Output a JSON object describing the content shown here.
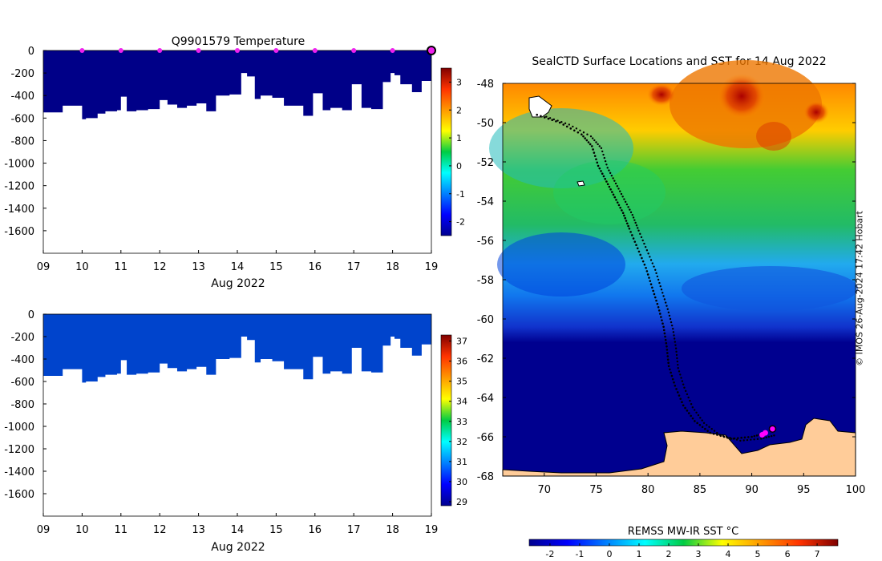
{
  "chart_data": [
    {
      "type": "area",
      "title": "Q9901579  Temperature",
      "xlabel": "Aug 2022",
      "ylabel": "",
      "xlim": [
        9,
        19
      ],
      "ylim": [
        -1800,
        0
      ],
      "x_ticks": [
        "09",
        "10",
        "11",
        "12",
        "13",
        "14",
        "15",
        "16",
        "17",
        "18",
        "19"
      ],
      "y_ticks": [
        "0",
        "-200",
        "-400",
        "-600",
        "-800",
        "-1000",
        "-1200",
        "-1400",
        "-1600"
      ],
      "profile_days": [
        9.0,
        9.5,
        9.75,
        10.0,
        10.1,
        10.4,
        10.6,
        10.9,
        11.0,
        11.15,
        11.4,
        11.7,
        12.0,
        12.2,
        12.45,
        12.7,
        12.95,
        13.2,
        13.45,
        13.8,
        14.1,
        14.25,
        14.45,
        14.6,
        14.9,
        15.2,
        15.45,
        15.7,
        15.95,
        16.2,
        16.4,
        16.7,
        16.95,
        17.2,
        17.45,
        17.75,
        17.95,
        18.05,
        18.2,
        18.5,
        18.75,
        19.0
      ],
      "profile_depths": [
        -550,
        -490,
        -490,
        -610,
        -600,
        -560,
        -540,
        -530,
        -410,
        -540,
        -530,
        -520,
        -440,
        -480,
        -510,
        -490,
        -470,
        -540,
        -400,
        -390,
        -200,
        -230,
        -430,
        -400,
        -420,
        -490,
        -490,
        -580,
        -380,
        -530,
        -510,
        -530,
        -300,
        -510,
        -520,
        -280,
        -200,
        -220,
        -300,
        -370,
        -270,
        -190
      ],
      "markers_days": [
        10,
        11,
        12,
        13,
        14,
        15,
        16,
        17,
        18
      ],
      "marker_color": "#ee22ee",
      "fill_color": "#000088",
      "colorbar": {
        "ticks": [
          "3",
          "2",
          "1",
          "0",
          "-1",
          "-2"
        ],
        "range": [
          -2.5,
          3.5
        ]
      }
    },
    {
      "type": "area",
      "title": "",
      "xlabel": "Aug 2022",
      "ylabel": "",
      "xlim": [
        9,
        19
      ],
      "ylim": [
        -1800,
        0
      ],
      "x_ticks": [
        "09",
        "10",
        "11",
        "12",
        "13",
        "14",
        "15",
        "16",
        "17",
        "18",
        "19"
      ],
      "y_ticks": [
        "0",
        "-200",
        "-400",
        "-600",
        "-800",
        "-1000",
        "-1200",
        "-1400",
        "-1600"
      ],
      "fill_color": "#0044cc",
      "colorbar": {
        "ticks": [
          "37",
          "36",
          "35",
          "34",
          "33",
          "32",
          "31",
          "30",
          "29"
        ],
        "range": [
          28.8,
          37.3
        ]
      }
    },
    {
      "type": "heatmap",
      "title": "SealCTD Surface Locations and SST for 14 Aug 2022",
      "xlabel": "",
      "ylabel": "",
      "xlim": [
        66,
        100
      ],
      "ylim": [
        -68,
        -48
      ],
      "x_ticks": [
        "70",
        "75",
        "80",
        "85",
        "90",
        "95",
        "100"
      ],
      "y_ticks": [
        "-48",
        "-50",
        "-52",
        "-54",
        "-56",
        "-58",
        "-60",
        "-62",
        "-64",
        "-66",
        "-68"
      ],
      "colorbar": {
        "label": "REMSS MW-IR SST °C",
        "ticks": [
          "-2",
          "-1",
          "0",
          "1",
          "2",
          "3",
          "4",
          "5",
          "6",
          "7"
        ],
        "range": [
          -2.7,
          7.7
        ]
      },
      "land_color": "#ffcc99",
      "track_points": [
        [
          69.3,
          -49.6
        ],
        [
          71.5,
          -50.0
        ],
        [
          73.6,
          -50.6
        ],
        [
          74.6,
          -51.2
        ],
        [
          75.2,
          -52.2
        ],
        [
          76.0,
          -53.0
        ],
        [
          76.8,
          -53.8
        ],
        [
          77.6,
          -54.6
        ],
        [
          78.2,
          -55.4
        ],
        [
          79.0,
          -56.4
        ],
        [
          79.8,
          -57.4
        ],
        [
          80.4,
          -58.4
        ],
        [
          81.0,
          -59.4
        ],
        [
          81.5,
          -60.4
        ],
        [
          81.8,
          -61.4
        ],
        [
          82.0,
          -62.4
        ],
        [
          82.6,
          -63.4
        ],
        [
          83.4,
          -64.4
        ],
        [
          84.5,
          -65.2
        ],
        [
          86.0,
          -65.8
        ],
        [
          88.0,
          -66.1
        ],
        [
          90.0,
          -66.0
        ],
        [
          91.5,
          -65.8
        ]
      ],
      "location_markers": [
        [
          91.0,
          -65.9
        ],
        [
          91.3,
          -65.8
        ],
        [
          92.0,
          -65.6
        ]
      ],
      "marker_color": "#ff00ff"
    }
  ],
  "credit": "© IMOS 26-Aug-2024 17:42 Hobart"
}
